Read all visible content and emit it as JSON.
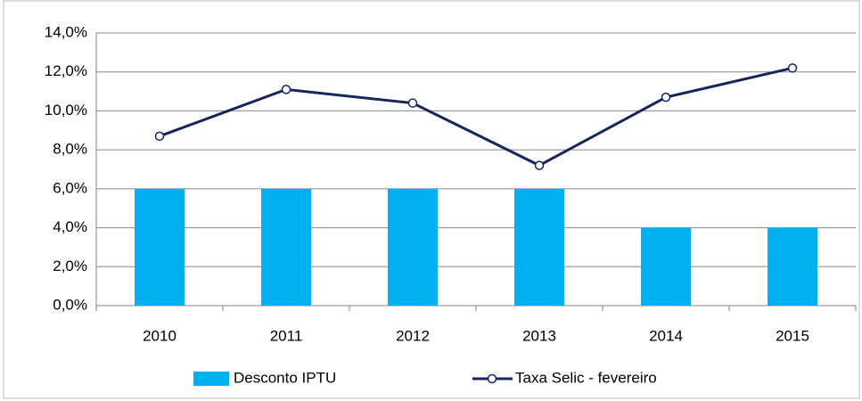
{
  "chart_data": {
    "type": "bar",
    "categories": [
      "2010",
      "2011",
      "2012",
      "2013",
      "2014",
      "2015"
    ],
    "series": [
      {
        "name": "Desconto IPTU",
        "type": "bar",
        "color": "#00b0f0",
        "values": [
          6,
          6,
          6,
          6,
          4,
          4
        ]
      },
      {
        "name": "Taxa Selic - fevereiro",
        "type": "line",
        "color": "#17255e",
        "values": [
          8.7,
          11.1,
          10.4,
          7.2,
          10.7,
          12.2
        ]
      }
    ],
    "ylim": [
      0,
      14
    ],
    "yticks": [
      {
        "value": 0,
        "label": "0,0%"
      },
      {
        "value": 2,
        "label": "2,0%"
      },
      {
        "value": 4,
        "label": "4,0%"
      },
      {
        "value": 6,
        "label": "6,0%"
      },
      {
        "value": 8,
        "label": "8,0%"
      },
      {
        "value": 10,
        "label": "10,0%"
      },
      {
        "value": 12,
        "label": "12,0%"
      },
      {
        "value": 14,
        "label": "14,0%"
      }
    ],
    "grid": true,
    "legend": "bottom"
  }
}
